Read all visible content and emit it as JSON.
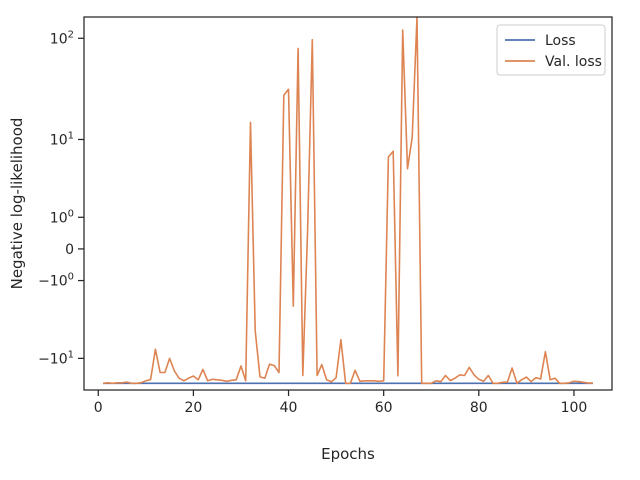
{
  "chart_data": {
    "type": "line",
    "title": "",
    "xlabel": "Epochs",
    "ylabel": "Negative log-likelihood",
    "yscale": "symlog",
    "xlim": [
      -3,
      108
    ],
    "ylim": [
      -21,
      160
    ],
    "grid": false,
    "legend_position": "top-right",
    "xticks": [
      0,
      20,
      40,
      60,
      80,
      100
    ],
    "xtick_labels": [
      "0",
      "20",
      "40",
      "60",
      "80",
      "100"
    ],
    "yticks": [
      100,
      10,
      1,
      0,
      -1,
      -10
    ],
    "ytick_labels": [
      {
        "base": "10",
        "exp": "2"
      },
      {
        "base": "10",
        "exp": "1"
      },
      {
        "base": "10",
        "exp": "0"
      },
      {
        "base": "0",
        "exp": ""
      },
      {
        "base": "−10",
        "exp": "0"
      },
      {
        "base": "−10",
        "exp": "1"
      }
    ],
    "series": [
      {
        "name": "Loss",
        "color": "#4c72b0",
        "x": [
          1,
          104
        ],
        "y": [
          -18,
          -18
        ]
      },
      {
        "name": "Val. loss",
        "color": "#dd8452",
        "x": [
          1,
          2,
          3,
          4,
          5,
          6,
          7,
          8,
          9,
          10,
          11,
          12,
          13,
          14,
          15,
          16,
          17,
          18,
          19,
          20,
          21,
          22,
          23,
          24,
          25,
          26,
          27,
          28,
          29,
          30,
          31,
          32,
          33,
          34,
          35,
          36,
          37,
          38,
          39,
          40,
          41,
          42,
          43,
          44,
          45,
          46,
          47,
          48,
          49,
          50,
          51,
          52,
          53,
          54,
          55,
          56,
          57,
          58,
          59,
          60,
          61,
          62,
          63,
          64,
          65,
          66,
          67,
          68,
          69,
          70,
          71,
          72,
          73,
          74,
          75,
          76,
          77,
          78,
          79,
          80,
          81,
          82,
          83,
          84,
          85,
          86,
          87,
          88,
          89,
          90,
          91,
          92,
          93,
          94,
          95,
          96,
          97,
          98,
          99,
          100,
          101,
          102,
          103,
          104
        ],
        "y": [
          -18,
          -17.8,
          -18,
          -17.8,
          -17.8,
          -17.5,
          -18,
          -18,
          -17.8,
          -17,
          -16.5,
          -8,
          -14,
          -14,
          -10,
          -13.5,
          -16,
          -17,
          -16,
          -15.2,
          -16.6,
          -13,
          -17,
          -16.4,
          -16.6,
          -16.8,
          -17.2,
          -16.8,
          -16.6,
          -12,
          -17,
          15,
          -5,
          -15.5,
          -16,
          -11.5,
          -11.9,
          -14,
          28,
          32,
          -2.5,
          80,
          -15,
          0.5,
          97,
          -15,
          -11.6,
          -16.6,
          -17.4,
          -15.8,
          -6.3,
          -18,
          -18,
          -13.3,
          -17.2,
          -17,
          -17,
          -17,
          -17.2,
          -17,
          6.5,
          7.5,
          -15.1,
          120,
          4.8,
          10.5,
          160,
          -18,
          -18,
          -18,
          -17,
          -17.3,
          -15,
          -16.9,
          -16,
          -14.8,
          -15,
          -12.4,
          -14.8,
          -16.4,
          -17.2,
          -15,
          -18,
          -18,
          -17.6,
          -17.5,
          -12.6,
          -18,
          -16.6,
          -15.6,
          -17.3,
          -15.8,
          -16.3,
          -8.5,
          -16.6,
          -16,
          -18,
          -18,
          -17.8,
          -17.2,
          -17.3,
          -17.6,
          -17.9,
          -17.9
        ]
      }
    ]
  }
}
